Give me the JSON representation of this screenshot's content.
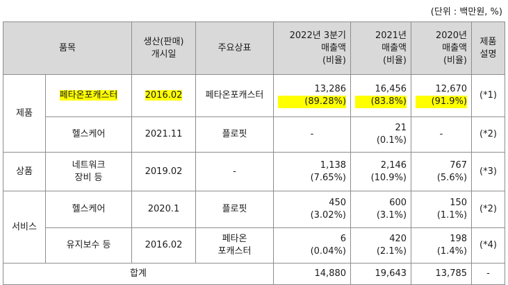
{
  "unit_note": "(단위 : 백만원, %)",
  "headers": {
    "item": "품목",
    "launch_date": [
      "생산(판매)",
      "개시일"
    ],
    "main_brand": "주요상표",
    "q3_2022": [
      "2022년 3분기",
      "매출액",
      "(비율)"
    ],
    "y2021": [
      "2021년",
      "매출액",
      "(비율)"
    ],
    "y2020": [
      "2020년",
      "매출액",
      "(비율)"
    ],
    "desc": [
      "제품",
      "설명"
    ]
  },
  "groups": [
    {
      "category": "제품",
      "rows": [
        {
          "name": "페타온포캐스터",
          "name_highlight": true,
          "date": "2016.02",
          "date_highlight": true,
          "brand": "페타온포캐스터",
          "q3_2022": {
            "value": "13,286",
            "ratio": "(89.28%)",
            "ratio_highlight": true
          },
          "y2021": {
            "value": "16,456",
            "ratio": "(83.8%)",
            "ratio_highlight": true
          },
          "y2020": {
            "value": "12,670",
            "ratio": "(91.9%)",
            "ratio_highlight": true
          },
          "desc": "(*1)"
        },
        {
          "name": "헬스케어",
          "date": "2021.11",
          "brand": "플로핏",
          "q3_2022": {
            "value": "-",
            "ratio": ""
          },
          "y2021": {
            "value": "21",
            "ratio": "(0.1%)"
          },
          "y2020": {
            "value": "-",
            "ratio": ""
          },
          "desc": "(*2)"
        }
      ]
    },
    {
      "category": "상품",
      "rows": [
        {
          "name": [
            "네트워크",
            "장비 등"
          ],
          "date": "2019.02",
          "brand": "-",
          "q3_2022": {
            "value": "1,138",
            "ratio": "(7.65%)"
          },
          "y2021": {
            "value": "2,146",
            "ratio": "(10.9%)"
          },
          "y2020": {
            "value": "767",
            "ratio": "(5.6%)"
          },
          "desc": "(*3)"
        }
      ]
    },
    {
      "category": "서비스",
      "rows": [
        {
          "name": "헬스케어",
          "date": "2020.1",
          "brand": "플로핏",
          "q3_2022": {
            "value": "450",
            "ratio": "(3.02%)"
          },
          "y2021": {
            "value": "600",
            "ratio": "(3.1%)"
          },
          "y2020": {
            "value": "150",
            "ratio": "(1.1%)"
          },
          "desc": "(*2)"
        },
        {
          "name": "유지보수 등",
          "date": "2016.02",
          "brand": [
            "페타온",
            "포캐스터"
          ],
          "q3_2022": {
            "value": "6",
            "ratio": "(0.04%)"
          },
          "y2021": {
            "value": "420",
            "ratio": "(2.1%)"
          },
          "y2020": {
            "value": "198",
            "ratio": "(1.4%)"
          },
          "desc": "(*4)"
        }
      ]
    }
  ],
  "total": {
    "label": "합계",
    "q3_2022": "14,880",
    "y2021": "19,643",
    "y2020": "13,785",
    "desc": "-"
  }
}
